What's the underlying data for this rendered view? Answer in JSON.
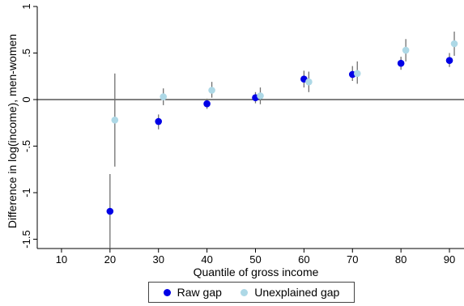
{
  "chart_data": {
    "type": "scatter",
    "xlabel": "Quantile of gross income",
    "ylabel": "Difference in log(income), men-women",
    "xlim": [
      5,
      93
    ],
    "ylim": [
      -1.6,
      1
    ],
    "x_ticks": [
      "10",
      "20",
      "30",
      "40",
      "50",
      "60",
      "70",
      "80",
      "90"
    ],
    "y_ticks": [
      "-1.5",
      "-1",
      "-.5",
      "0",
      ".5",
      "1"
    ],
    "legend_position": "bottom",
    "series": [
      {
        "name": "Raw gap",
        "color": "#0000e6",
        "points": [
          {
            "x": 20,
            "y": -1.2,
            "lo": -1.6,
            "hi": -0.8
          },
          {
            "x": 30,
            "y": -0.235,
            "lo": -0.32,
            "hi": -0.16
          },
          {
            "x": 40,
            "y": -0.045,
            "lo": -0.1,
            "hi": 0.01
          },
          {
            "x": 50,
            "y": 0.02,
            "lo": -0.04,
            "hi": 0.08
          },
          {
            "x": 60,
            "y": 0.22,
            "lo": 0.13,
            "hi": 0.31
          },
          {
            "x": 70,
            "y": 0.27,
            "lo": 0.2,
            "hi": 0.36
          },
          {
            "x": 80,
            "y": 0.39,
            "lo": 0.32,
            "hi": 0.46
          },
          {
            "x": 90,
            "y": 0.42,
            "lo": 0.35,
            "hi": 0.5
          }
        ]
      },
      {
        "name": "Unexplained gap",
        "color": "#add8e6",
        "points": [
          {
            "x": 21,
            "y": -0.22,
            "lo": -0.72,
            "hi": 0.28
          },
          {
            "x": 31,
            "y": 0.03,
            "lo": -0.06,
            "hi": 0.12
          },
          {
            "x": 41,
            "y": 0.1,
            "lo": 0.02,
            "hi": 0.19
          },
          {
            "x": 51,
            "y": 0.04,
            "lo": -0.05,
            "hi": 0.13
          },
          {
            "x": 61,
            "y": 0.19,
            "lo": 0.08,
            "hi": 0.3
          },
          {
            "x": 71,
            "y": 0.28,
            "lo": 0.17,
            "hi": 0.41
          },
          {
            "x": 81,
            "y": 0.53,
            "lo": 0.41,
            "hi": 0.65
          },
          {
            "x": 91,
            "y": 0.6,
            "lo": 0.47,
            "hi": 0.73
          }
        ]
      }
    ]
  }
}
